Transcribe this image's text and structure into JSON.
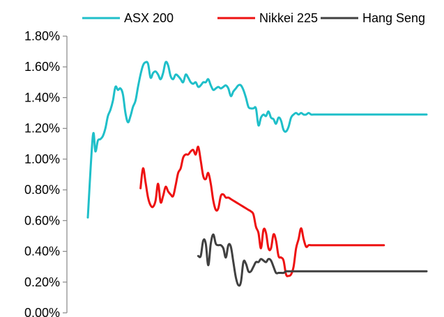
{
  "chart_data": {
    "type": "line",
    "title": "",
    "xlabel": "",
    "ylabel": "",
    "ylim": [
      0,
      0.018
    ],
    "y_ticks": [
      0,
      0.002,
      0.004,
      0.006,
      0.008,
      0.01,
      0.012,
      0.014,
      0.016,
      0.018
    ],
    "y_tick_labels": [
      "0.00%",
      "0.20%",
      "0.40%",
      "0.60%",
      "0.80%",
      "1.00%",
      "1.20%",
      "1.40%",
      "1.60%",
      "1.80%"
    ],
    "x_tick_labels_shown": false,
    "grid": false,
    "legend": {
      "placement": "top",
      "entries": [
        "ASX 200",
        "Nikkei 225",
        "Hang Seng"
      ]
    },
    "x_range": [
      0,
      135
    ],
    "series": [
      {
        "name": "ASX 200",
        "color": "#1fbfc9",
        "x": [
          0,
          2,
          3,
          4,
          5,
          6,
          7,
          8,
          9,
          10,
          11,
          12,
          13,
          14,
          15,
          16,
          17,
          18,
          19,
          20,
          21,
          22,
          23,
          24,
          25,
          26,
          27,
          28,
          29,
          30,
          31,
          32,
          33,
          34,
          35,
          36,
          37,
          38,
          39,
          40,
          41,
          42,
          43,
          44,
          45,
          46,
          47,
          48,
          49,
          50,
          51,
          52,
          53,
          54,
          55,
          56,
          57,
          58,
          59,
          60,
          61,
          62,
          63,
          64,
          65,
          66,
          67,
          68,
          69,
          70,
          71,
          72,
          73,
          74,
          75,
          76,
          77,
          78,
          79,
          80,
          81,
          82,
          83,
          84,
          85,
          86,
          87,
          88,
          89,
          90,
          91,
          92,
          93,
          94,
          95,
          96,
          97,
          98,
          99,
          100,
          101,
          102,
          103,
          104,
          105,
          106,
          107,
          108,
          109,
          110,
          111,
          112,
          113,
          114,
          115,
          116,
          117,
          118,
          119,
          120,
          121,
          122,
          123,
          124,
          125,
          126,
          127,
          128,
          129,
          130,
          131,
          132,
          133,
          134,
          135
        ],
        "values": [
          0.0062,
          0.0115,
          0.0105,
          0.0112,
          0.0113,
          0.0115,
          0.012,
          0.0128,
          0.0132,
          0.0138,
          0.0147,
          0.0145,
          0.0146,
          0.0142,
          0.013,
          0.0124,
          0.0128,
          0.0134,
          0.0138,
          0.0147,
          0.0155,
          0.0161,
          0.0163,
          0.0162,
          0.0153,
          0.0156,
          0.0157,
          0.0155,
          0.0152,
          0.0156,
          0.0163,
          0.0161,
          0.0154,
          0.0152,
          0.0155,
          0.0154,
          0.0152,
          0.015,
          0.0155,
          0.0153,
          0.015,
          0.0149,
          0.015,
          0.0147,
          0.0148,
          0.015,
          0.015,
          0.0152,
          0.0148,
          0.0145,
          0.0146,
          0.0147,
          0.0146,
          0.0147,
          0.0148,
          0.0146,
          0.0141,
          0.0144,
          0.0146,
          0.0148,
          0.0148,
          0.0145,
          0.014,
          0.0134,
          0.0133,
          0.0133,
          0.0133,
          0.0122,
          0.0127,
          0.0129,
          0.0128,
          0.0131,
          0.0127,
          0.0126,
          0.0123,
          0.0127,
          0.0125,
          0.0119,
          0.0118,
          0.0121,
          0.0127,
          0.0129,
          0.013,
          0.0129,
          0.013,
          0.0129,
          0.0129,
          0.013,
          0.0129,
          0.0129,
          0.0129,
          0.0129,
          0.0129,
          0.0129,
          0.0129,
          0.0129,
          0.0129,
          0.0129,
          0.0129,
          0.0129,
          0.0129,
          0.0129,
          0.0129,
          0.0129,
          0.0129,
          0.0129,
          0.0129,
          0.0129,
          0.0129,
          0.0129,
          0.0129,
          0.0129,
          0.0129,
          0.0129,
          0.0129,
          0.0129,
          0.0129,
          0.0129,
          0.0129,
          0.0129,
          0.0129,
          0.0129,
          0.0129,
          0.0129,
          0.0129,
          0.0129,
          0.0129,
          0.0129,
          0.0129,
          0.0129,
          0.0129,
          0.0129,
          0.0129,
          0.0129,
          0.0129
        ]
      },
      {
        "name": "Nikkei 225",
        "color": "#ee1111",
        "x": [
          21,
          22,
          23,
          24,
          25,
          26,
          27,
          28,
          29,
          30,
          31,
          32,
          33,
          34,
          35,
          36,
          37,
          38,
          39,
          40,
          41,
          42,
          43,
          44,
          45,
          46,
          47,
          48,
          49,
          50,
          51,
          52,
          53,
          54,
          55,
          56,
          57,
          58,
          59,
          60,
          61,
          62,
          63,
          64,
          65,
          66,
          67,
          68,
          69,
          70,
          71,
          72,
          73,
          74,
          75,
          76,
          77,
          78,
          79,
          80,
          81,
          82,
          83,
          84,
          85,
          86,
          87,
          88,
          89,
          90,
          91,
          92,
          93,
          94,
          95,
          96,
          97,
          98,
          99,
          100,
          101,
          102,
          103,
          104,
          105,
          106,
          107,
          108,
          109,
          110,
          111,
          112,
          113,
          114,
          115,
          116,
          117,
          118
        ],
        "values": [
          0.0081,
          0.0094,
          0.0085,
          0.0075,
          0.007,
          0.0069,
          0.0073,
          0.0084,
          0.0072,
          0.0076,
          0.0082,
          0.0079,
          0.0077,
          0.0076,
          0.0083,
          0.0091,
          0.0094,
          0.0101,
          0.0103,
          0.0103,
          0.0105,
          0.0106,
          0.0103,
          0.0108,
          0.0099,
          0.0089,
          0.0087,
          0.0091,
          0.0084,
          0.0073,
          0.0067,
          0.0068,
          0.0076,
          0.0077,
          0.0075,
          0.0075,
          0.0074,
          0.0073,
          0.0072,
          0.0071,
          0.007,
          0.0069,
          0.0068,
          0.0067,
          0.0066,
          0.0064,
          0.0056,
          0.0052,
          0.0042,
          0.0054,
          0.0052,
          0.0042,
          0.0042,
          0.0051,
          0.0047,
          0.0037,
          0.0036,
          0.0034,
          0.0025,
          0.0024,
          0.0025,
          0.003,
          0.0042,
          0.0048,
          0.0055,
          0.0048,
          0.0043,
          0.0044,
          0.0044,
          0.0044,
          0.0044,
          0.0044,
          0.0044,
          0.0044,
          0.0044,
          0.0044,
          0.0044,
          0.0044,
          0.0044,
          0.0044,
          0.0044,
          0.0044,
          0.0044,
          0.0044,
          0.0044,
          0.0044,
          0.0044,
          0.0044,
          0.0044,
          0.0044,
          0.0044,
          0.0044,
          0.0044,
          0.0044,
          0.0044,
          0.0044,
          0.0044,
          0.0044
        ]
      },
      {
        "name": "Hang Seng",
        "color": "#404040",
        "x": [
          44,
          45,
          46,
          47,
          48,
          49,
          50,
          51,
          52,
          53,
          54,
          55,
          56,
          57,
          58,
          59,
          60,
          61,
          62,
          63,
          64,
          65,
          66,
          67,
          68,
          69,
          70,
          71,
          72,
          73,
          74,
          75,
          76,
          77,
          78,
          79,
          80,
          81,
          82,
          83,
          84,
          85,
          86,
          87,
          88,
          89,
          90,
          91,
          92,
          93,
          94,
          95,
          96,
          97,
          98,
          99,
          100,
          101,
          102,
          103,
          104,
          105,
          106,
          107,
          108,
          109,
          110,
          111,
          112,
          113,
          114,
          115,
          116,
          117,
          118,
          119,
          120,
          121,
          122,
          123,
          124,
          125,
          126,
          127,
          128,
          129,
          130,
          131,
          132,
          133,
          134,
          135
        ],
        "values": [
          0.0037,
          0.0037,
          0.0047,
          0.0045,
          0.0031,
          0.0045,
          0.0051,
          0.0045,
          0.0044,
          0.0044,
          0.0042,
          0.0036,
          0.0044,
          0.0043,
          0.0033,
          0.0023,
          0.0018,
          0.002,
          0.0033,
          0.0032,
          0.0027,
          0.0027,
          0.003,
          0.0033,
          0.0033,
          0.0035,
          0.0034,
          0.0033,
          0.0035,
          0.0034,
          0.003,
          0.0026,
          0.0026,
          0.0026,
          0.0026,
          0.0027,
          0.0027,
          0.0027,
          0.0027,
          0.0027,
          0.0027,
          0.0027,
          0.0027,
          0.0027,
          0.0027,
          0.0027,
          0.0027,
          0.0027,
          0.0027,
          0.0027,
          0.0027,
          0.0027,
          0.0027,
          0.0027,
          0.0027,
          0.0027,
          0.0027,
          0.0027,
          0.0027,
          0.0027,
          0.0027,
          0.0027,
          0.0027,
          0.0027,
          0.0027,
          0.0027,
          0.0027,
          0.0027,
          0.0027,
          0.0027,
          0.0027,
          0.0027,
          0.0027,
          0.0027,
          0.0027,
          0.0027,
          0.0027,
          0.0027,
          0.0027,
          0.0027,
          0.0027,
          0.0027,
          0.0027,
          0.0027,
          0.0027,
          0.0027,
          0.0027,
          0.0027,
          0.0027,
          0.0027,
          0.0027,
          0.0027
        ]
      }
    ]
  }
}
